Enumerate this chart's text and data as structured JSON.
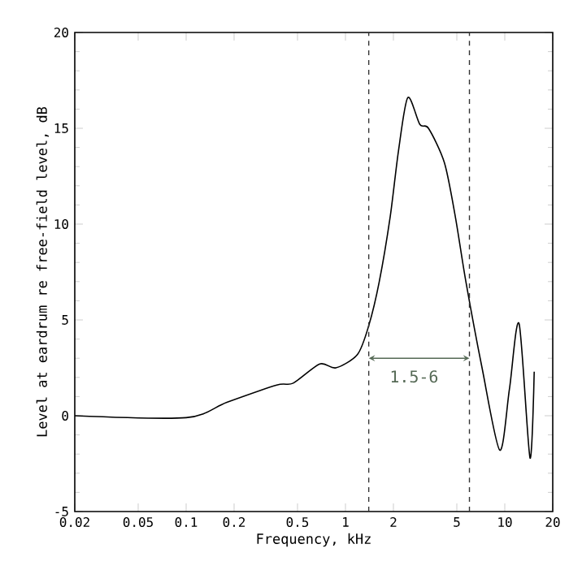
{
  "chart_data": {
    "type": "line",
    "xlabel": "Frequency, kHz",
    "ylabel": "Level at eardrum re free-field level, dB",
    "log": "x",
    "xlim": [
      0.02,
      20
    ],
    "ylim": [
      -5,
      20
    ],
    "xticks": [
      0.02,
      0.05,
      0.1,
      0.2,
      0.5,
      1,
      2,
      5,
      10,
      20
    ],
    "yticks": [
      -5,
      0,
      5,
      10,
      15,
      20
    ],
    "grid": false,
    "marker": "none",
    "line_style": "solid",
    "series": [
      {
        "color": "#000000",
        "x": [
          0.02,
          0.1,
          0.18,
          0.37,
          0.47,
          0.69,
          0.87,
          1.19,
          1.4,
          1.63,
          1.91,
          2.15,
          2.46,
          2.93,
          3.32,
          4.18,
          4.89,
          5.7,
          7.2,
          9.3,
          10.7,
          12.3,
          14.4,
          15.3
        ],
        "values": [
          0,
          -0.1,
          0.7,
          1.6,
          1.7,
          2.7,
          2.5,
          3.2,
          4.7,
          7.0,
          10.4,
          13.8,
          16.6,
          15.2,
          15.0,
          13.2,
          10.4,
          7.0,
          2.5,
          -1.8,
          1.4,
          4.8,
          -2.2,
          2.3
        ]
      }
    ],
    "ref_lines": [
      {
        "axis": "x",
        "value": 1.4,
        "label": null,
        "color": "#333333",
        "line_style": "dashed"
      },
      {
        "axis": "x",
        "value": 6,
        "label": null,
        "color": "#333333",
        "line_style": "dashed"
      }
    ],
    "annotations": [
      "1.5-6"
    ]
  }
}
